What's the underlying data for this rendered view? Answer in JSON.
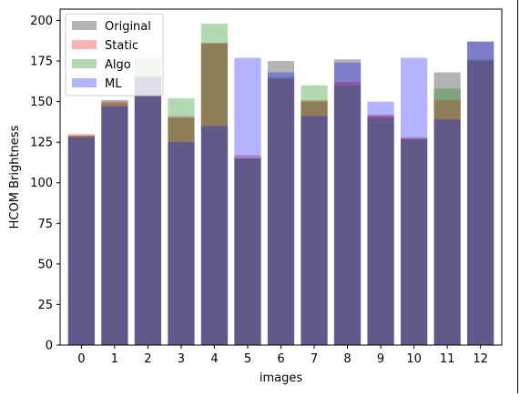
{
  "chart_data": {
    "type": "bar",
    "title": "",
    "xlabel": "images",
    "ylabel": "HCOM Brightness",
    "categories": [
      "0",
      "1",
      "2",
      "3",
      "4",
      "5",
      "6",
      "7",
      "8",
      "9",
      "10",
      "11",
      "12"
    ],
    "ylim": [
      0,
      207
    ],
    "yticks": [
      0,
      25,
      50,
      75,
      100,
      125,
      150,
      175,
      200
    ],
    "ytick_labels": [
      "0",
      "25",
      "50",
      "75",
      "100",
      "125",
      "150",
      "175",
      "200"
    ],
    "grid": false,
    "legend_position": "top-left",
    "overlay": true,
    "series": [
      {
        "name": "Original",
        "color": "#808080",
        "alpha": 0.6,
        "values": [
          129,
          151,
          166,
          140,
          186,
          115,
          175,
          150,
          176,
          141,
          127,
          168,
          187
        ]
      },
      {
        "name": "Static",
        "color": "#ff0000",
        "alpha": 0.3,
        "values": [
          130,
          150,
          165,
          141,
          186,
          117,
          164,
          151,
          162,
          142,
          128,
          151,
          175
        ]
      },
      {
        "name": "Algo",
        "color": "#008000",
        "alpha": 0.3,
        "values": [
          129,
          149,
          177,
          152,
          198,
          115,
          165,
          160,
          160,
          140,
          127,
          158,
          176
        ]
      },
      {
        "name": "ML",
        "color": "#0000ff",
        "alpha": 0.3,
        "values": [
          128,
          147,
          165,
          125,
          135,
          177,
          168,
          141,
          174,
          150,
          177,
          139,
          187
        ]
      }
    ]
  }
}
